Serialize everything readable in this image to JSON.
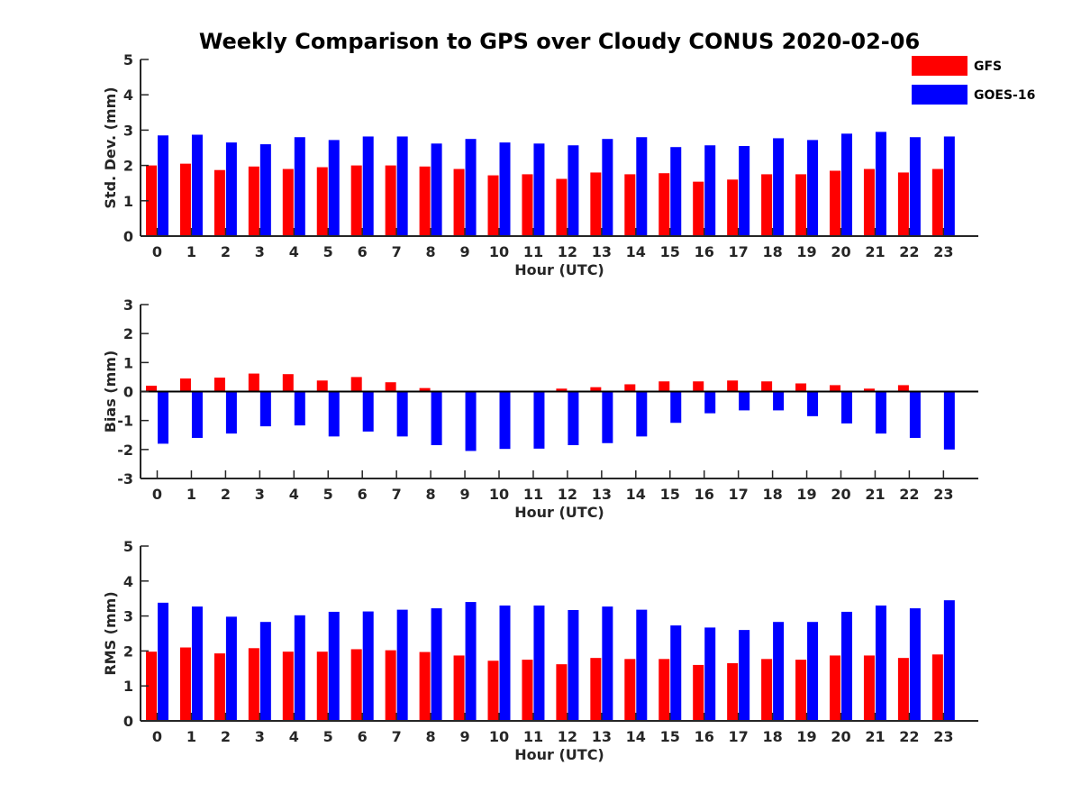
{
  "figure_title": "Weekly Comparison to GPS over Cloudy CONUS 2020-02-06",
  "legend": [
    {
      "label": "GFS",
      "color": "#ff0000"
    },
    {
      "label": "GOES-16",
      "color": "#0000ff"
    }
  ],
  "chart_data": [
    {
      "type": "bar",
      "ylabel": "Std. Dev. (mm)",
      "xlabel": "Hour (UTC)",
      "ylim": [
        0,
        5
      ],
      "yticks": [
        0,
        1,
        2,
        3,
        4,
        5
      ],
      "categories": [
        "0",
        "1",
        "2",
        "3",
        "4",
        "5",
        "6",
        "7",
        "8",
        "9",
        "10",
        "11",
        "12",
        "13",
        "14",
        "15",
        "16",
        "17",
        "18",
        "19",
        "20",
        "21",
        "22",
        "23"
      ],
      "series": [
        {
          "name": "GFS",
          "color": "#ff0000",
          "values": [
            2.0,
            2.05,
            1.87,
            1.97,
            1.9,
            1.95,
            2.0,
            2.0,
            1.97,
            1.9,
            1.72,
            1.75,
            1.62,
            1.8,
            1.75,
            1.78,
            1.54,
            1.6,
            1.75,
            1.75,
            1.85,
            1.9,
            1.8,
            1.9
          ]
        },
        {
          "name": "GOES-16",
          "color": "#0000ff",
          "values": [
            2.85,
            2.87,
            2.65,
            2.6,
            2.8,
            2.72,
            2.82,
            2.82,
            2.62,
            2.75,
            2.65,
            2.62,
            2.57,
            2.75,
            2.8,
            2.52,
            2.57,
            2.55,
            2.77,
            2.72,
            2.9,
            2.95,
            2.8,
            2.82
          ]
        }
      ]
    },
    {
      "type": "bar",
      "ylabel": "Bias (mm)",
      "xlabel": "Hour (UTC)",
      "ylim": [
        -3,
        3
      ],
      "yticks": [
        -3,
        -2,
        -1,
        0,
        1,
        2,
        3
      ],
      "zero_line": true,
      "categories": [
        "0",
        "1",
        "2",
        "3",
        "4",
        "5",
        "6",
        "7",
        "8",
        "9",
        "10",
        "11",
        "12",
        "13",
        "14",
        "15",
        "16",
        "17",
        "18",
        "19",
        "20",
        "21",
        "22",
        "23"
      ],
      "series": [
        {
          "name": "GFS",
          "color": "#ff0000",
          "values": [
            0.2,
            0.45,
            0.48,
            0.62,
            0.6,
            0.38,
            0.5,
            0.32,
            0.12,
            0.02,
            0.01,
            0.02,
            0.1,
            0.15,
            0.25,
            0.35,
            0.35,
            0.38,
            0.35,
            0.28,
            0.22,
            0.1,
            0.22,
            0.02
          ]
        },
        {
          "name": "GOES-16",
          "color": "#0000ff",
          "values": [
            -1.8,
            -1.6,
            -1.45,
            -1.2,
            -1.17,
            -1.55,
            -1.38,
            -1.55,
            -1.85,
            -2.05,
            -1.98,
            -1.97,
            -1.85,
            -1.78,
            -1.55,
            -1.08,
            -0.75,
            -0.65,
            -0.65,
            -0.85,
            -1.1,
            -1.45,
            -1.6,
            -2.0
          ]
        }
      ]
    },
    {
      "type": "bar",
      "ylabel": "RMS (mm)",
      "xlabel": "Hour (UTC)",
      "ylim": [
        0,
        5
      ],
      "yticks": [
        0,
        1,
        2,
        3,
        4,
        5
      ],
      "categories": [
        "0",
        "1",
        "2",
        "3",
        "4",
        "5",
        "6",
        "7",
        "8",
        "9",
        "10",
        "11",
        "12",
        "13",
        "14",
        "15",
        "16",
        "17",
        "18",
        "19",
        "20",
        "21",
        "22",
        "23"
      ],
      "series": [
        {
          "name": "GFS",
          "color": "#ff0000",
          "values": [
            1.98,
            2.1,
            1.93,
            2.08,
            1.98,
            1.98,
            2.05,
            2.02,
            1.97,
            1.87,
            1.72,
            1.75,
            1.62,
            1.8,
            1.77,
            1.77,
            1.6,
            1.65,
            1.77,
            1.75,
            1.87,
            1.87,
            1.8,
            1.9
          ]
        },
        {
          "name": "GOES-16",
          "color": "#0000ff",
          "values": [
            3.38,
            3.27,
            2.98,
            2.83,
            3.02,
            3.12,
            3.13,
            3.18,
            3.22,
            3.4,
            3.3,
            3.3,
            3.17,
            3.27,
            3.18,
            2.73,
            2.67,
            2.6,
            2.83,
            2.83,
            3.12,
            3.3,
            3.22,
            3.45
          ]
        }
      ]
    }
  ]
}
